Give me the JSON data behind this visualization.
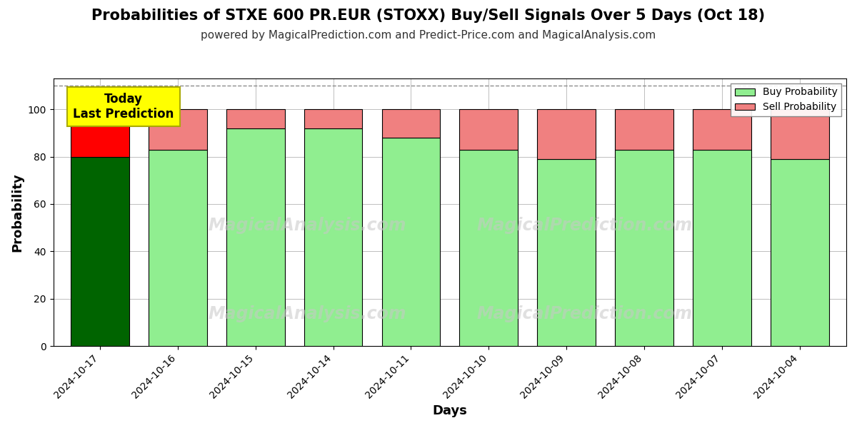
{
  "title": "Probabilities of STXE 600 PR.EUR (STOXX) Buy/Sell Signals Over 5 Days (Oct 18)",
  "subtitle": "powered by MagicalPrediction.com and Predict-Price.com and MagicalAnalysis.com",
  "xlabel": "Days",
  "ylabel": "Probability",
  "categories": [
    "2024-10-17",
    "2024-10-16",
    "2024-10-15",
    "2024-10-14",
    "2024-10-11",
    "2024-10-10",
    "2024-10-09",
    "2024-10-08",
    "2024-10-07",
    "2024-10-04"
  ],
  "buy_values": [
    80,
    83,
    92,
    92,
    88,
    83,
    79,
    83,
    83,
    79
  ],
  "sell_values": [
    20,
    17,
    8,
    8,
    12,
    17,
    21,
    17,
    17,
    21
  ],
  "buy_color_today": "#006400",
  "sell_color_today": "#FF0000",
  "buy_color_normal": "#90EE90",
  "sell_color_normal": "#F08080",
  "bar_edge_color": "#000000",
  "today_annotation_bg": "#FFFF00",
  "today_annotation_text": "Today\nLast Prediction",
  "ylim_max": 113,
  "yticks": [
    0,
    20,
    40,
    60,
    80,
    100
  ],
  "dashed_line_y": 110,
  "legend_labels": [
    "Buy Probability",
    "Sell Probability"
  ],
  "legend_colors": [
    "#90EE90",
    "#F08080"
  ],
  "title_fontsize": 15,
  "subtitle_fontsize": 11,
  "axis_label_fontsize": 13,
  "tick_fontsize": 10,
  "watermark_texts": [
    "MagicalAnalysis.com",
    "MagicalPrediction.com"
  ],
  "watermark_color": "#D3D3D3"
}
